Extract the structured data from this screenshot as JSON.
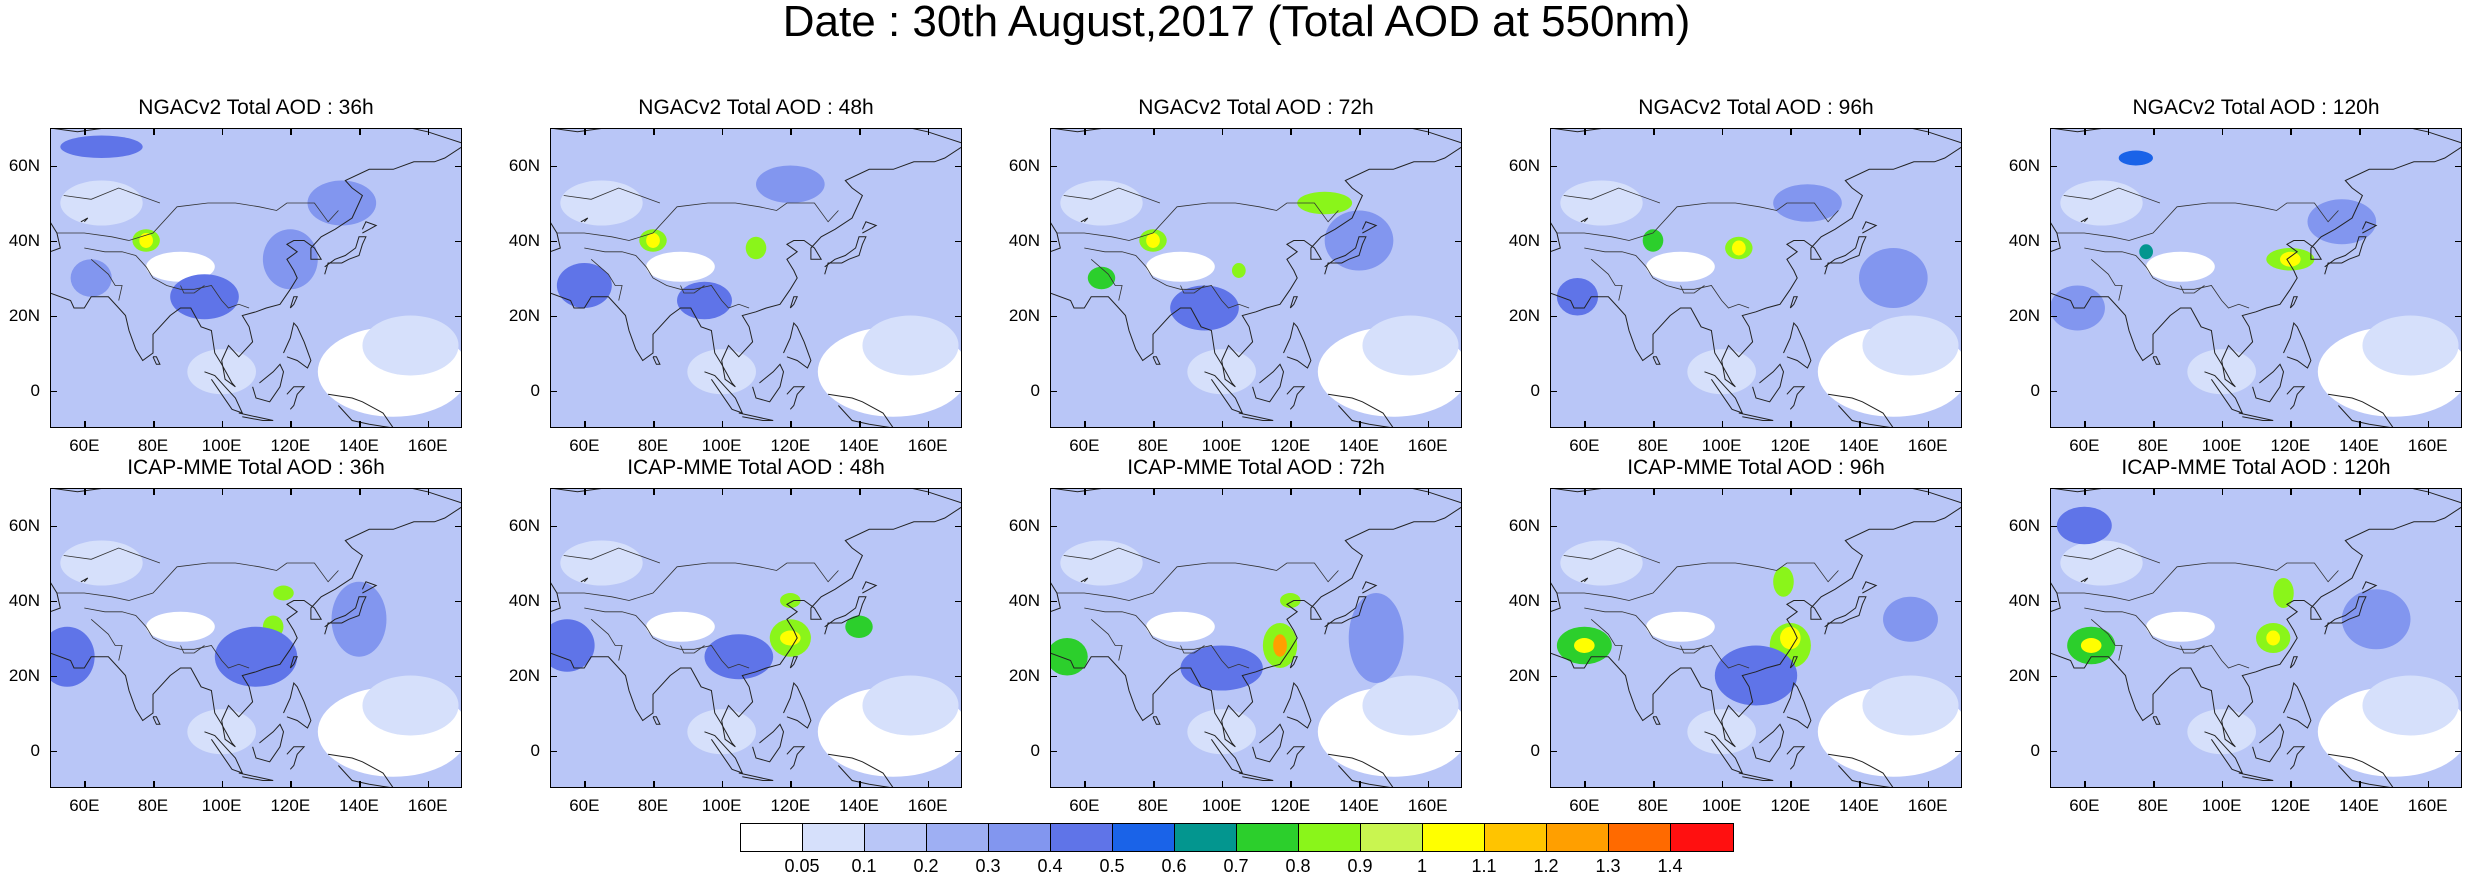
{
  "main_title": "Date : 30th August,2017 (Total AOD at 550nm)",
  "panels": [
    {
      "title": "NGACv2 Total AOD : 36h"
    },
    {
      "title": "NGACv2 Total AOD : 48h"
    },
    {
      "title": "NGACv2 Total AOD : 72h"
    },
    {
      "title": "NGACv2 Total AOD : 96h"
    },
    {
      "title": "NGACv2 Total AOD : 120h"
    },
    {
      "title": "ICAP-MME Total AOD : 36h"
    },
    {
      "title": "ICAP-MME Total AOD : 48h"
    },
    {
      "title": "ICAP-MME Total AOD : 72h"
    },
    {
      "title": "ICAP-MME Total AOD : 96h"
    },
    {
      "title": "ICAP-MME Total AOD : 120h"
    }
  ],
  "map_axes": {
    "lat_labels": [
      "60N",
      "40N",
      "20N",
      "0"
    ],
    "lat_values": [
      60,
      40,
      20,
      0
    ],
    "lon_labels": [
      "60E",
      "80E",
      "100E",
      "120E",
      "140E",
      "160E"
    ],
    "lon_values": [
      60,
      80,
      100,
      120,
      140,
      160
    ],
    "lat_range": [
      -10,
      70
    ],
    "lon_range": [
      50,
      170
    ]
  },
  "colorbar": {
    "colors": [
      "#ffffff",
      "#d6e0fb",
      "#b9c6f7",
      "#9eaff3",
      "#8296ef",
      "#5f74e8",
      "#1a63e8",
      "#03968f",
      "#2ccf2c",
      "#8af51a",
      "#c9f550",
      "#ffff00",
      "#ffc400",
      "#ff9f00",
      "#ff6a00",
      "#ff1010"
    ],
    "labels": [
      "0.05",
      "0.1",
      "0.2",
      "0.3",
      "0.4",
      "0.5",
      "0.6",
      "0.7",
      "0.8",
      "0.9",
      "1",
      "1.1",
      "1.2",
      "1.3",
      "1.4"
    ]
  }
}
